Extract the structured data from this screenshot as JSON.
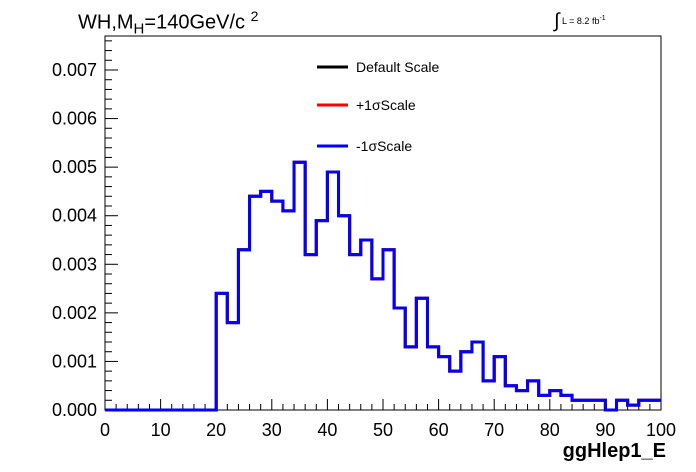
{
  "chart_data": {
    "type": "line",
    "title_parts": {
      "base": "WH,M",
      "sub": "H",
      "rest": "=140GeV/c",
      "sup": "2"
    },
    "lumi_parts": {
      "integral": "∫",
      "text": "L = 8.2 fb",
      "sup": "-1"
    },
    "xlabel": "ggHlep1_E",
    "ylabel": "",
    "xlim": [
      0,
      100
    ],
    "ylim": [
      0,
      0.0077
    ],
    "x_ticks": [
      "0",
      "10",
      "20",
      "30",
      "40",
      "50",
      "60",
      "70",
      "80",
      "90",
      "100"
    ],
    "y_ticks": [
      "0.000",
      "0.001",
      "0.002",
      "0.003",
      "0.004",
      "0.005",
      "0.006",
      "0.007"
    ],
    "legend_position": "top-center",
    "series": [
      {
        "name": "Default Scale",
        "color": "#000000"
      },
      {
        "name": "+1σScale",
        "color": "#ff0000"
      },
      {
        "name": "-1σScale",
        "color": "#0000ff"
      }
    ],
    "bin_edges": [
      0,
      2,
      4,
      6,
      8,
      10,
      12,
      14,
      16,
      18,
      20,
      22,
      24,
      26,
      28,
      30,
      32,
      34,
      36,
      38,
      40,
      42,
      44,
      46,
      48,
      50,
      52,
      54,
      56,
      58,
      60,
      62,
      64,
      66,
      68,
      70,
      72,
      74,
      76,
      78,
      80,
      82,
      84,
      86,
      88,
      90,
      92,
      94,
      96,
      98,
      100
    ],
    "values": [
      0,
      0,
      0,
      0,
      0,
      0,
      0,
      0,
      0,
      0,
      0.0024,
      0.0018,
      0.0033,
      0.0044,
      0.0045,
      0.0043,
      0.0041,
      0.0051,
      0.0032,
      0.0039,
      0.0049,
      0.004,
      0.0032,
      0.0035,
      0.0027,
      0.0033,
      0.0021,
      0.0013,
      0.0023,
      0.0013,
      0.0011,
      0.0008,
      0.0012,
      0.0014,
      0.0006,
      0.0011,
      0.0005,
      0.0004,
      0.0006,
      0.0003,
      0.0004,
      0.0003,
      0.0002,
      0.0002,
      0.0002,
      0.0,
      0.0002,
      0.0001,
      0.0002,
      0.0002
    ]
  }
}
